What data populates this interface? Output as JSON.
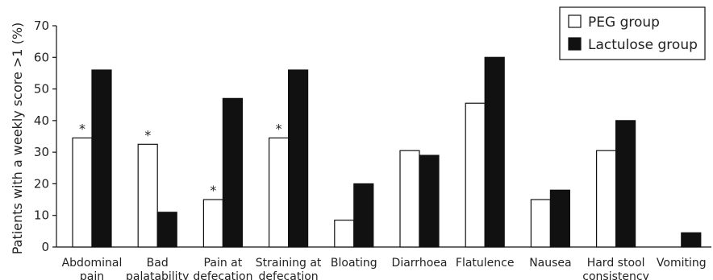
{
  "chart_data": {
    "type": "bar",
    "ylabel": "Patients with a weekly score >1 (%)",
    "ylim": [
      0,
      70
    ],
    "yticks": [
      0,
      10,
      20,
      30,
      40,
      50,
      60,
      70
    ],
    "grid": false,
    "legend_position": "top-right",
    "categories": [
      [
        "Abdominal",
        "pain"
      ],
      [
        "Bad",
        "palatability"
      ],
      [
        "Pain at",
        "defecation"
      ],
      [
        "Straining at",
        "defecation"
      ],
      [
        "Bloating"
      ],
      [
        "Diarrhoea"
      ],
      [
        "Flatulence"
      ],
      [
        "Nausea"
      ],
      [
        "Hard stool",
        "consistency"
      ],
      [
        "Vomiting"
      ]
    ],
    "series": [
      {
        "name": "PEG group",
        "fill": "#ffffff",
        "stroke": "#111111",
        "values": [
          34.5,
          32.5,
          15,
          34.5,
          8.5,
          30.5,
          45.5,
          15,
          30.5,
          0
        ]
      },
      {
        "name": "Lactulose group",
        "fill": "#111111",
        "stroke": "#111111",
        "values": [
          56,
          11,
          47,
          56,
          20,
          29,
          60,
          18,
          40,
          4.5
        ]
      }
    ],
    "significance_marker": "*",
    "significant_categories": [
      0,
      1,
      2,
      3
    ]
  }
}
